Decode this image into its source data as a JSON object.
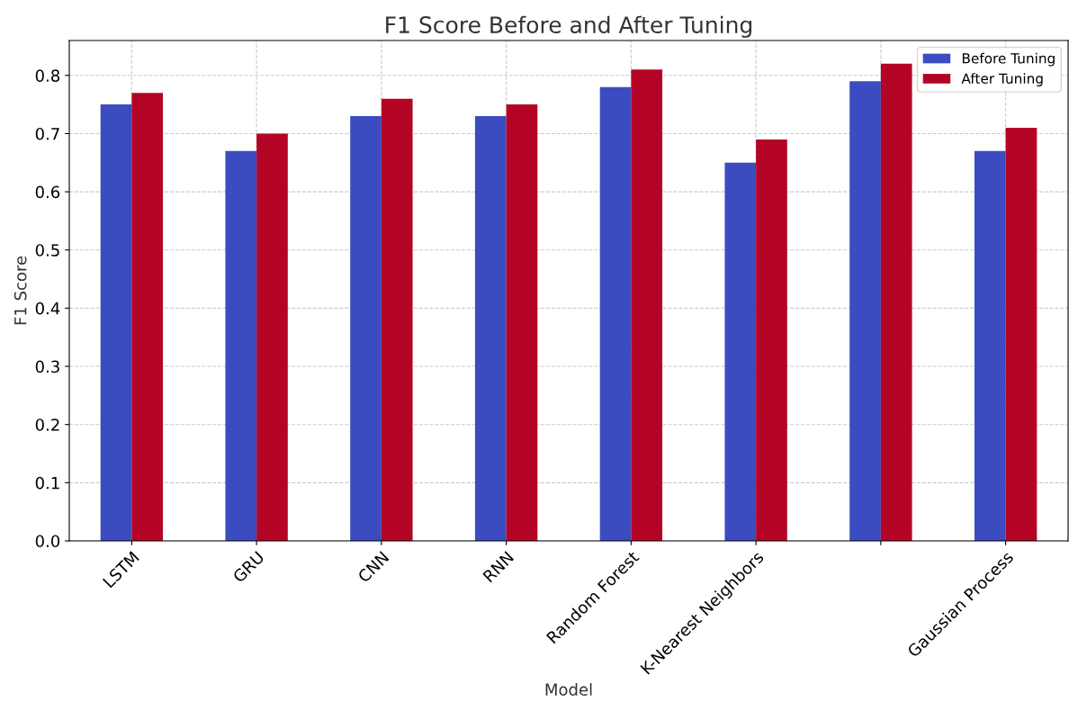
{
  "chart_data": {
    "type": "bar",
    "title": "F1 Score Before and After Tuning",
    "xlabel": "Model",
    "ylabel": "F1 Score",
    "categories": [
      "LSTM",
      "GRU",
      "CNN",
      "RNN",
      "Random Forest",
      "K-Nearest Neighbors",
      null,
      "Gaussian Process"
    ],
    "series": [
      {
        "name": "Before Tuning",
        "color": "#3b4cc0",
        "values": [
          0.75,
          0.67,
          0.73,
          0.73,
          0.78,
          0.65,
          0.79,
          0.67
        ]
      },
      {
        "name": "After Tuning",
        "color": "#b40426",
        "values": [
          0.77,
          0.7,
          0.76,
          0.75,
          0.81,
          0.69,
          0.82,
          0.71
        ]
      }
    ],
    "ylim": [
      0,
      0.86
    ],
    "yticks": [
      {
        "value": 0,
        "label": "0.0"
      },
      0.1,
      0.2,
      0.3,
      0.4,
      0.5,
      0.6,
      0.7,
      0.8
    ],
    "grid": true,
    "legend": "top right"
  }
}
